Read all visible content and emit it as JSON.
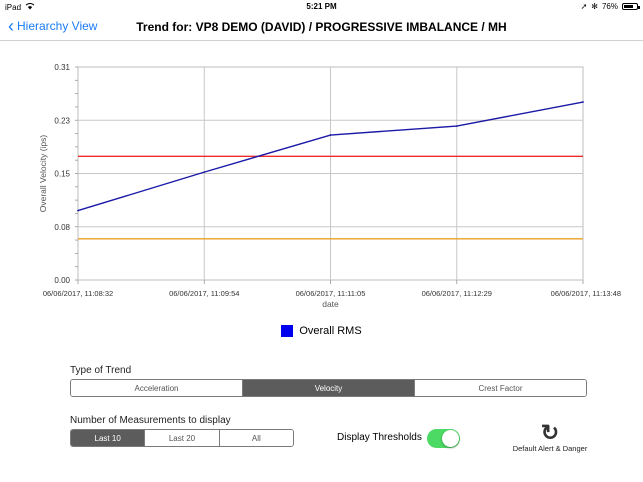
{
  "status_bar": {
    "device": "iPad",
    "wifi_icon": "wifi-icon",
    "time": "5:21 PM",
    "battery_percent": "76%",
    "battery_level": 0.76
  },
  "nav": {
    "back_label": "Hierarchy View",
    "title": "Trend for: VP8 DEMO (DAVID) / PROGRESSIVE IMBALANCE / MH"
  },
  "chart_data": {
    "type": "line",
    "x": [
      "06/06/2017, 11:08:32",
      "06/06/2017, 11:09:54",
      "06/06/2017, 11:11:05",
      "06/06/2017, 11:12:29",
      "06/06/2017, 11:13:48"
    ],
    "series": [
      {
        "name": "Overall RMS",
        "values": [
          0.101,
          0.157,
          0.211,
          0.224,
          0.259
        ],
        "color": "#1a1aa6"
      }
    ],
    "thresholds": [
      {
        "value": 0.18,
        "color": "#ee2b2b"
      },
      {
        "value": 0.06,
        "color": "#e8a020"
      }
    ],
    "yticks": [
      "0.00",
      "0.08",
      "0.15",
      "0.23",
      "0.31"
    ],
    "ylim": [
      0,
      0.31
    ],
    "xlabel": "date",
    "ylabel": "Overall Velocity (ips)",
    "grid": true,
    "legend_position": "bottom"
  },
  "trend_type": {
    "label": "Type of Trend",
    "options": [
      "Acceleration",
      "Velocity",
      "Crest Factor"
    ],
    "selected": "Velocity"
  },
  "measurements": {
    "label": "Number of Measurements to display",
    "options": [
      "Last 10",
      "Last 20",
      "All"
    ],
    "selected": "Last 10"
  },
  "thresholds_toggle": {
    "label": "Display Thresholds",
    "on": true
  },
  "reset": {
    "label": "Default Alert & Danger",
    "icon": "refresh-icon"
  }
}
